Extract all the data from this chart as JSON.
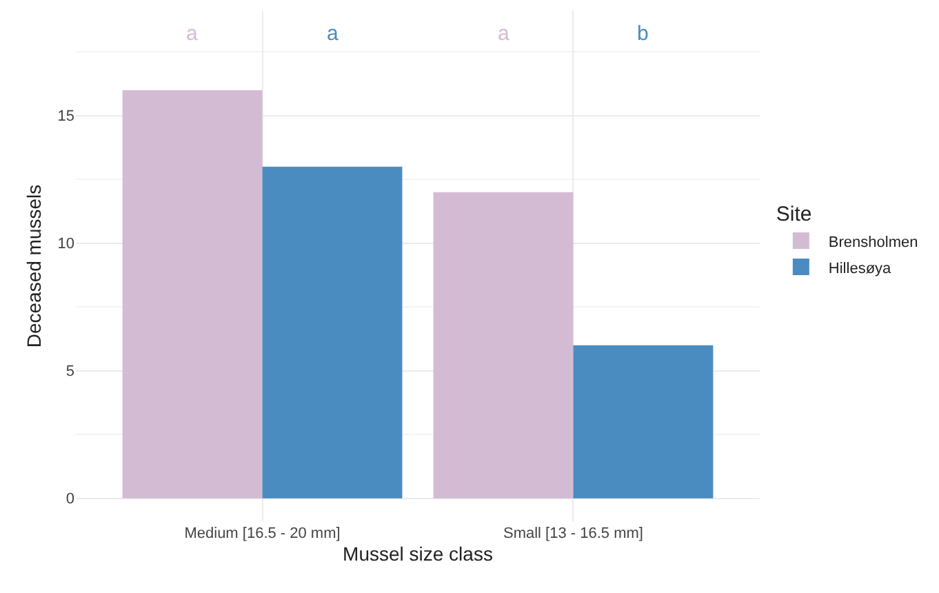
{
  "chart_data": {
    "type": "bar",
    "xlabel": "Mussel size class",
    "ylabel": "Deceased mussels",
    "legend_title": "Site",
    "categories": [
      "Medium [16.5 - 20 mm]",
      "Small [13 - 16.5 mm]"
    ],
    "series": [
      {
        "name": "Brensholmen",
        "color": "#d4bbd4",
        "values": [
          16,
          12
        ]
      },
      {
        "name": "Hillesøya",
        "color": "#4a8cbf",
        "values": [
          13,
          6
        ]
      }
    ],
    "annotations": [
      "a",
      "a",
      "a",
      "b"
    ],
    "ylim": [
      -0.9,
      19.1
    ],
    "yticks": [
      0,
      5,
      10,
      15
    ],
    "grid": true,
    "legend": "right"
  }
}
